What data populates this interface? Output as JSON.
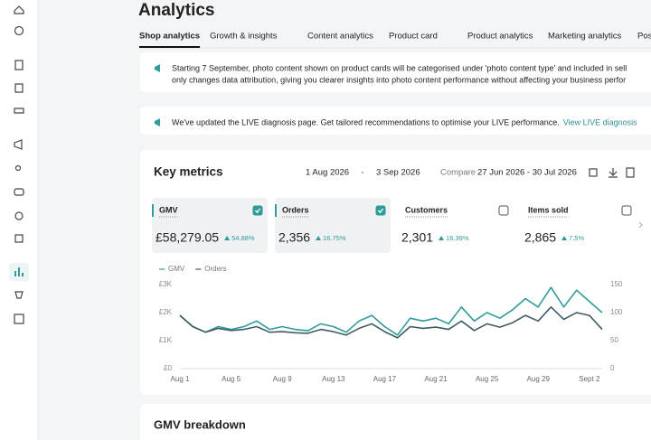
{
  "header": {
    "title": "Analytics"
  },
  "tabs": [
    {
      "label": "Shop analytics",
      "active": true
    },
    {
      "label": "Growth & insights",
      "active": false
    },
    {
      "label": "Content analytics",
      "active": false
    },
    {
      "label": "Product card",
      "active": false
    },
    {
      "label": "Product analytics",
      "active": false
    },
    {
      "label": "Marketing analytics",
      "active": false
    },
    {
      "label": "Pos",
      "active": false
    }
  ],
  "notices": [
    {
      "lines": [
        "Starting 7 September, photo content shown on product cards will be categorised under 'photo content type' and included in sell",
        "only changes data attribution, giving you clearer insights into photo content performance without affecting your business perfor"
      ]
    },
    {
      "lines": [
        "We've updated the LIVE diagnosis page. Get tailored recommendations to optimise your LIVE performance."
      ],
      "link": "View LIVE diagnosis"
    }
  ],
  "key_metrics": {
    "title": "Key metrics",
    "start_date": "1 Aug 2026",
    "end_date": "3 Sep 2026",
    "compare_label": "Compare",
    "compare_range": "27 Jun 2026 - 30 Jul 2026"
  },
  "metrics": [
    {
      "label": "GMV",
      "value": "£58,279.05",
      "change": "54.88%",
      "checked": true
    },
    {
      "label": "Orders",
      "value": "2,356",
      "change": "16.75%",
      "checked": true
    },
    {
      "label": "Customers",
      "value": "2,301",
      "change": "16.39%",
      "checked": false
    },
    {
      "label": "Items sold",
      "value": "2,865",
      "change": "7.5%",
      "checked": false
    }
  ],
  "chart_data": {
    "type": "line",
    "categories": [
      "Aug 1",
      null,
      null,
      null,
      "Aug 5",
      null,
      null,
      null,
      "Aug 9",
      null,
      null,
      null,
      "Aug 13",
      null,
      null,
      null,
      "Aug 17",
      null,
      null,
      null,
      "Aug 21",
      null,
      null,
      null,
      "Aug 25",
      null,
      null,
      null,
      "Aug 29",
      null,
      null,
      null,
      "Sept 2",
      null
    ],
    "series": [
      {
        "name": "GMV",
        "color": "#2e9c98",
        "values": [
          1900,
          1500,
          1300,
          1500,
          1400,
          1500,
          1700,
          1400,
          1500,
          1400,
          1350,
          1600,
          1500,
          1300,
          1700,
          1900,
          1500,
          1200,
          1800,
          1700,
          1800,
          1600,
          2200,
          1700,
          2000,
          1800,
          2100,
          2500,
          2200,
          2900,
          2200,
          2800,
          2400,
          2000
        ]
      },
      {
        "name": "Orders",
        "color": "#3f5c62",
        "axis": "y2",
        "values": [
          95,
          75,
          65,
          72,
          68,
          70,
          75,
          65,
          66,
          64,
          63,
          70,
          66,
          60,
          72,
          80,
          66,
          55,
          75,
          72,
          74,
          70,
          85,
          68,
          80,
          74,
          82,
          95,
          85,
          110,
          88,
          100,
          95,
          70
        ]
      }
    ],
    "ylim": [
      0,
      3000
    ],
    "yticks": [
      {
        "value": 0,
        "label": "£0"
      },
      {
        "value": 1000,
        "label": "£1K"
      },
      {
        "value": 2000,
        "label": "£2K"
      },
      {
        "value": 3000,
        "label": "£3K"
      }
    ],
    "y2lim": [
      0,
      150
    ],
    "y2ticks": [
      0,
      50,
      100,
      150
    ]
  },
  "breakdown": {
    "title": "GMV breakdown"
  }
}
